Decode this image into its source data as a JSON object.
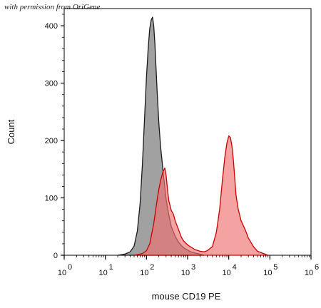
{
  "watermark": "with permission from OriGene",
  "chart_data": {
    "type": "area",
    "xlabel": "mouse CD19 PE",
    "ylabel": "Count",
    "x_scale": "log",
    "xlim": [
      1,
      1000000
    ],
    "ylim": [
      0,
      430
    ],
    "y_ticks": [
      0,
      100,
      200,
      300,
      400
    ],
    "x_ticks": [
      {
        "value": 1,
        "base": "10",
        "exp": "0"
      },
      {
        "value": 10,
        "base": "10",
        "exp": "1"
      },
      {
        "value": 100,
        "base": "10",
        "exp": "2"
      },
      {
        "value": 1000,
        "base": "10",
        "exp": "3"
      },
      {
        "value": 10000,
        "base": "10",
        "exp": "4"
      },
      {
        "value": 100000,
        "base": "10",
        "exp": "5"
      },
      {
        "value": 1000000,
        "base": "10",
        "exp": "6"
      }
    ],
    "series": [
      {
        "fill": "#8a8a8a",
        "stroke": "#1a1a1a",
        "opacity": 0.8,
        "x": [
          20,
          30,
          40,
          50,
          60,
          70,
          80,
          90,
          100,
          110,
          120,
          130,
          140,
          150,
          160,
          170,
          180,
          200,
          220,
          250,
          280,
          300,
          350,
          400,
          500,
          600,
          700,
          800,
          1000,
          1200,
          1500,
          2000,
          2500
        ],
        "y": [
          0,
          2,
          6,
          16,
          42,
          90,
          160,
          240,
          310,
          360,
          395,
          410,
          415,
          400,
          370,
          330,
          290,
          230,
          190,
          150,
          118,
          98,
          70,
          50,
          33,
          23,
          17,
          13,
          9,
          6,
          4,
          2,
          0
        ]
      },
      {
        "fill": "#f07070",
        "stroke": "#cc0000",
        "opacity": 0.65,
        "x": [
          50,
          80,
          100,
          120,
          150,
          180,
          200,
          220,
          250,
          280,
          300,
          330,
          350,
          400,
          450,
          500,
          600,
          700,
          800,
          1000,
          1500,
          2000,
          2500,
          3000,
          4000,
          5000,
          6000,
          7000,
          8000,
          9000,
          10000,
          11000,
          12000,
          13000,
          14000,
          15000,
          17000,
          20000,
          25000,
          30000,
          40000,
          50000,
          70000,
          90000
        ],
        "y": [
          0,
          3,
          8,
          20,
          55,
          95,
          115,
          130,
          145,
          152,
          140,
          110,
          95,
          78,
          72,
          60,
          45,
          32,
          25,
          18,
          10,
          7,
          6,
          8,
          15,
          40,
          80,
          130,
          170,
          195,
          208,
          205,
          190,
          165,
          135,
          105,
          80,
          60,
          45,
          30,
          15,
          7,
          3,
          0
        ]
      }
    ]
  }
}
